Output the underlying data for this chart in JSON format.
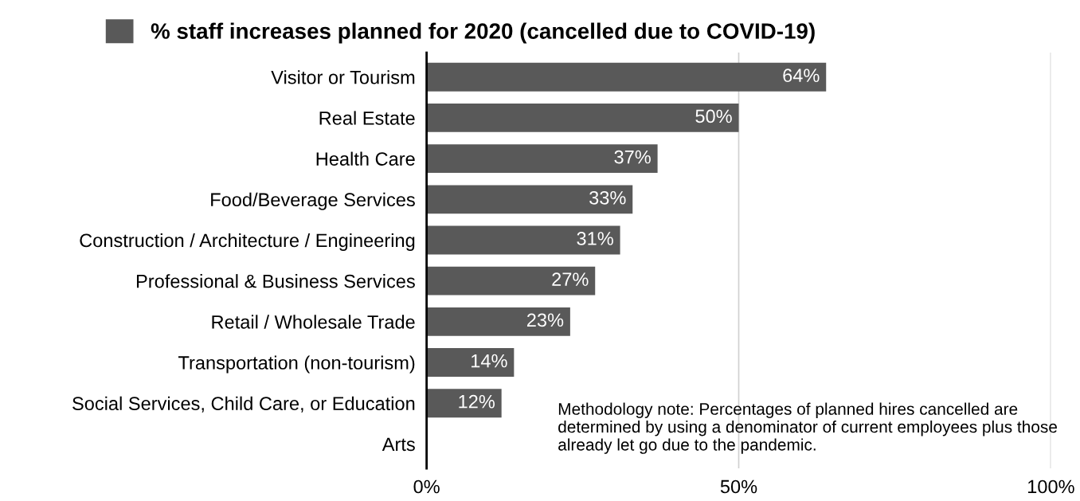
{
  "chart_data": {
    "type": "bar",
    "orientation": "horizontal",
    "categories": [
      "Visitor or Tourism",
      "Real Estate",
      "Health Care",
      "Food/Beverage Services",
      "Construction / Architecture / Engineering",
      "Professional & Business Services",
      "Retail / Wholesale Trade",
      "Transportation (non-tourism)",
      "Social Services, Child Care, or Education",
      "Arts"
    ],
    "series": [
      {
        "name": "% staff increases planned for 2020 (cancelled due to COVID-19)",
        "color": "#595959",
        "values": [
          64,
          50,
          37,
          33,
          31,
          27,
          23,
          14,
          12,
          null
        ],
        "value_labels": [
          "64%",
          "50%",
          "37%",
          "33%",
          "31%",
          "27%",
          "23%",
          "14%",
          "12%",
          null
        ]
      }
    ],
    "xlim": [
      0,
      100
    ],
    "xticks": [
      {
        "value": 0,
        "label": "0%"
      },
      {
        "value": 50,
        "label": "50%"
      },
      {
        "value": 100,
        "label": "100%"
      }
    ],
    "grid": "x",
    "legend": "top",
    "annotations": [
      "Methodology note: Percentages of planned hires cancelled are determined by using a denominator of current employees plus those already let go due to the pandemic."
    ]
  }
}
